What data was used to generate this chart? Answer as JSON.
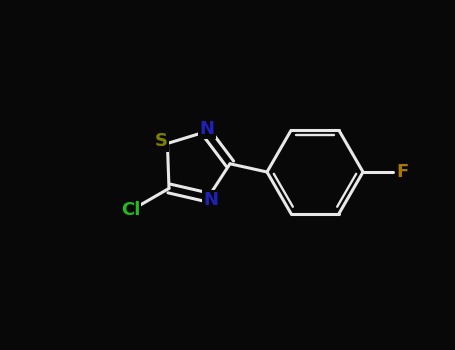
{
  "background_color": "#080808",
  "bond_color": "#e8e8e8",
  "bond_width": 2.2,
  "atom_labels": {
    "S": {
      "color": "#808000",
      "fontsize": 13,
      "fontweight": "bold"
    },
    "N_top": {
      "color": "#2020bb",
      "fontsize": 13,
      "fontweight": "bold"
    },
    "N_bot": {
      "color": "#2020bb",
      "fontsize": 13,
      "fontweight": "bold"
    },
    "Cl": {
      "color": "#22bb22",
      "fontsize": 13,
      "fontweight": "bold"
    },
    "F": {
      "color": "#aa7700",
      "fontsize": 13,
      "fontweight": "bold"
    }
  },
  "figsize": [
    4.55,
    3.5
  ],
  "dpi": 100
}
